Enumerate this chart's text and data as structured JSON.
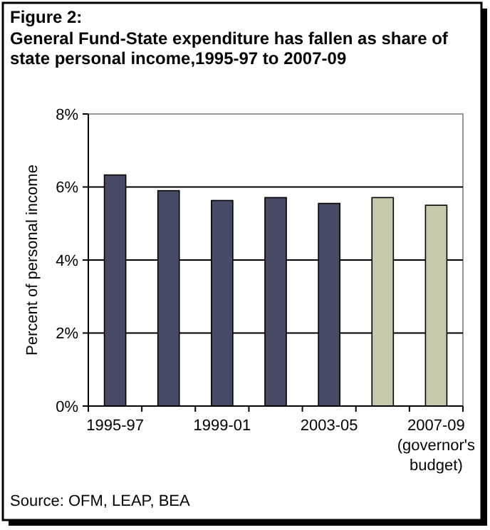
{
  "chart_data": {
    "type": "bar",
    "title": "Figure 2:",
    "subtitle": "General Fund-State expenditure has fallen as share of state personal income,1995-97 to 2007-09",
    "ylabel": "Percent of personal income",
    "categories": [
      "1995-97",
      null,
      "1999-01",
      null,
      "2003-05",
      null,
      "2007-09\n(governor's\nbudget)"
    ],
    "values": [
      6.33,
      5.9,
      5.63,
      5.71,
      5.55,
      5.71,
      5.5
    ],
    "colors": [
      "#474b66",
      "#474b66",
      "#474b66",
      "#474b66",
      "#474b66",
      "#c8c8aa",
      "#c8c8aa"
    ],
    "ylim": [
      0,
      8
    ],
    "yticks": [
      {
        "value": 0,
        "label": "0%"
      },
      {
        "value": 2,
        "label": "2%"
      },
      {
        "value": 4,
        "label": "4%"
      },
      {
        "value": 6,
        "label": "6%"
      },
      {
        "value": 8,
        "label": "8%"
      }
    ],
    "grid": "y",
    "annotations": [
      "Source: OFM, LEAP, BEA"
    ]
  }
}
